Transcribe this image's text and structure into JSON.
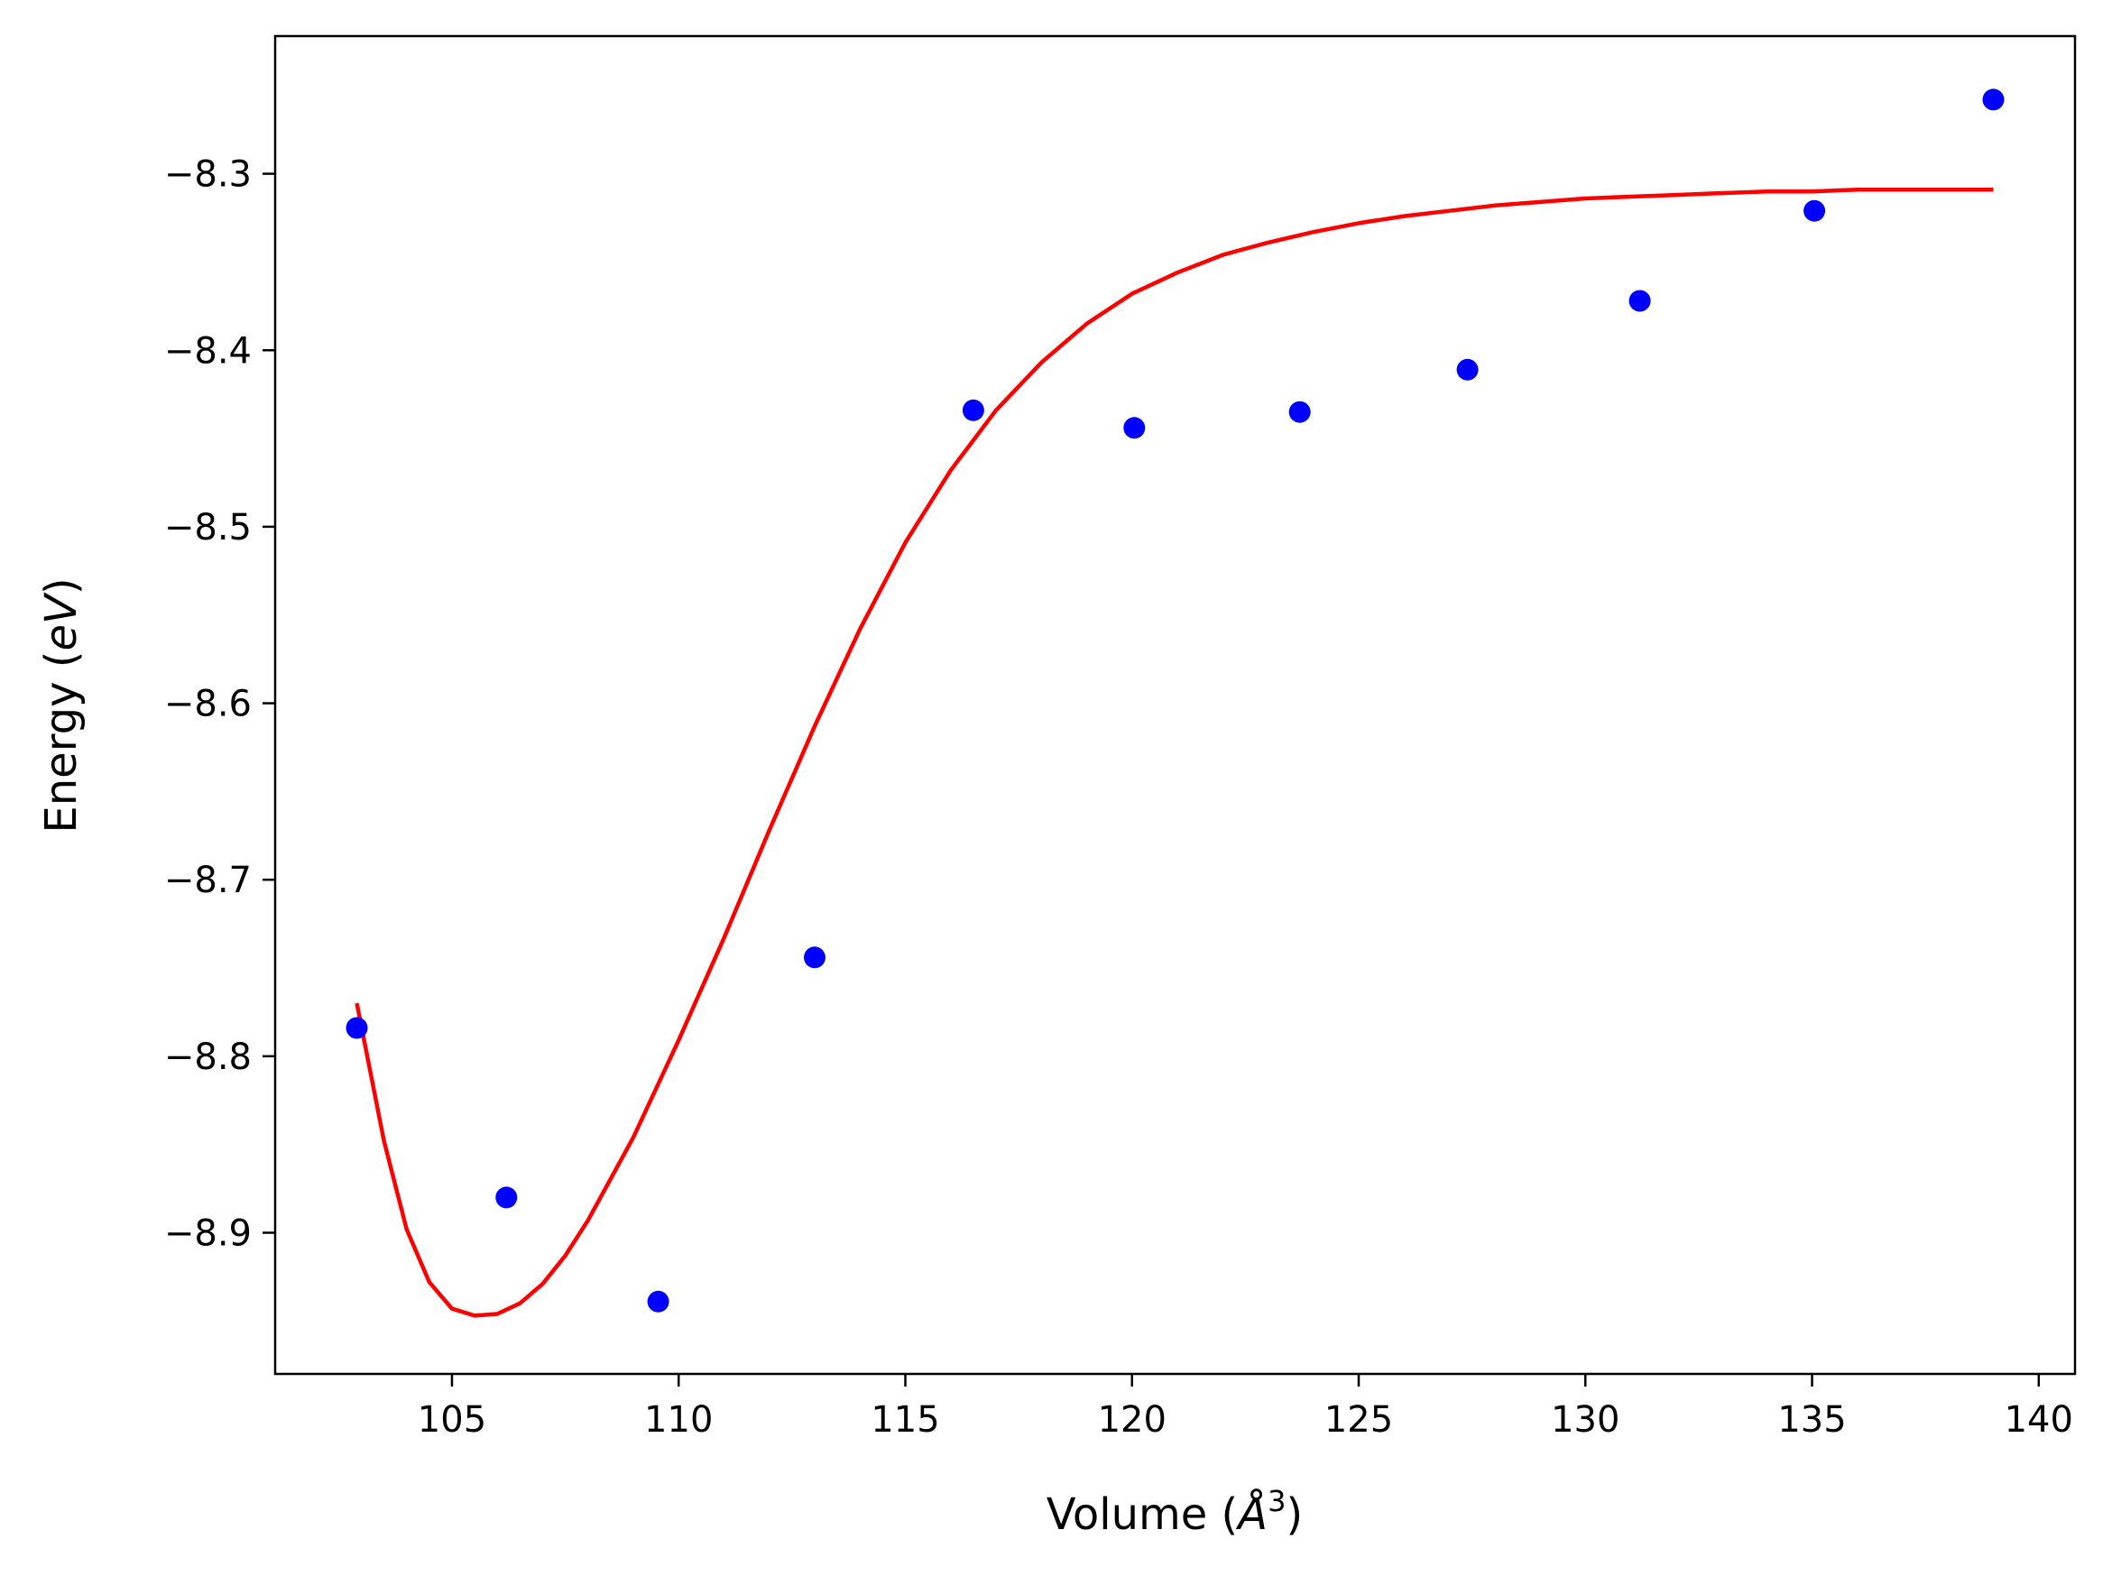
{
  "chart_data": {
    "type": "scatter",
    "title": "",
    "xlabel": "Volume (",
    "xlabel_symbol": "Å",
    "xlabel_exponent": "3",
    "xlabel_close": ")",
    "ylabel": "Energy (",
    "ylabel_unit": "eV",
    "ylabel_close": ")",
    "xlim": [
      101.1,
      140.8
    ],
    "ylim": [
      -8.98,
      -8.222
    ],
    "grid": false,
    "x_ticks": [
      105,
      110,
      115,
      120,
      125,
      130,
      135,
      140
    ],
    "x_tick_labels": [
      "105",
      "110",
      "115",
      "120",
      "125",
      "130",
      "135",
      "140"
    ],
    "y_ticks": [
      -8.3,
      -8.4,
      -8.5,
      -8.6,
      -8.7,
      -8.8,
      -8.9
    ],
    "y_tick_labels": [
      "−8.3",
      "−8.4",
      "−8.5",
      "−8.6",
      "−8.7",
      "−8.8",
      "−8.9"
    ],
    "series": [
      {
        "kind": "points",
        "color": "#0000ff",
        "x": [
          102.9,
          106.2,
          109.55,
          113.0,
          116.5,
          120.05,
          123.7,
          127.4,
          131.2,
          135.05,
          139.0
        ],
        "y": [
          -8.784,
          -8.88,
          -8.939,
          -8.744,
          -8.434,
          -8.444,
          -8.435,
          -8.411,
          -8.372,
          -8.321,
          -8.258
        ]
      },
      {
        "kind": "fit_line",
        "color": "#ff0000",
        "x": [
          102.9,
          103.5,
          104.0,
          104.5,
          105.0,
          105.5,
          106.0,
          106.5,
          107.0,
          107.5,
          108.0,
          109.0,
          110.0,
          111.0,
          112.0,
          113.0,
          114.0,
          115.0,
          116.0,
          117.0,
          118.0,
          119.0,
          120.0,
          121.0,
          122.0,
          123.0,
          124.0,
          125.0,
          126.0,
          127.0,
          128.0,
          129.0,
          130.0,
          131.0,
          132.0,
          133.0,
          134.0,
          135.0,
          136.0,
          137.0,
          138.0,
          139.0
        ],
        "y": [
          -8.77,
          -8.848,
          -8.898,
          -8.928,
          -8.943,
          -8.947,
          -8.946,
          -8.94,
          -8.929,
          -8.913,
          -8.893,
          -8.846,
          -8.791,
          -8.733,
          -8.672,
          -8.613,
          -8.558,
          -8.509,
          -8.468,
          -8.434,
          -8.407,
          -8.385,
          -8.368,
          -8.356,
          -8.346,
          -8.339,
          -8.333,
          -8.328,
          -8.324,
          -8.321,
          -8.318,
          -8.316,
          -8.314,
          -8.313,
          -8.312,
          -8.311,
          -8.31,
          -8.31,
          -8.309,
          -8.309,
          -8.309,
          -8.309
        ]
      }
    ]
  }
}
